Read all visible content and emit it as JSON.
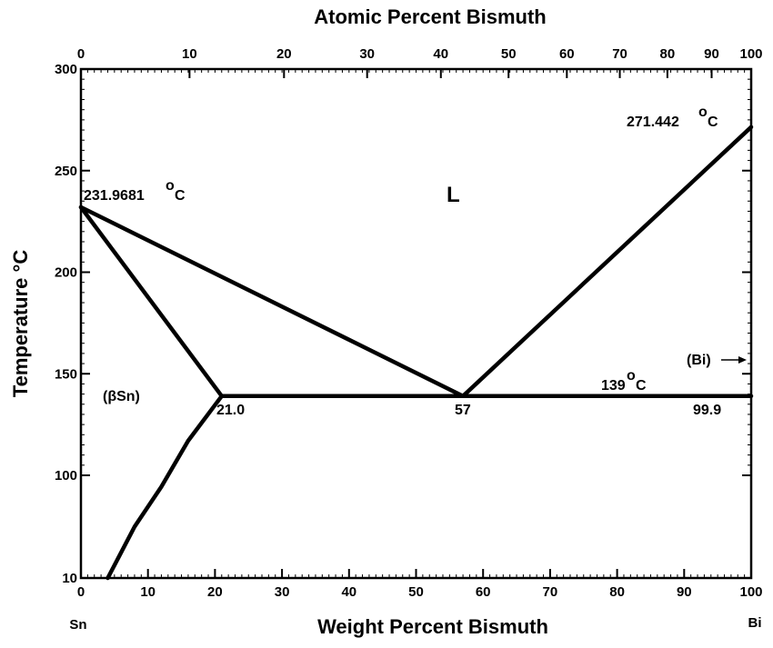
{
  "chart_data": {
    "type": "line",
    "title": "",
    "x_bottom_label": "Weight Percent Bismuth",
    "x_top_label": "Atomic Percent Bismuth",
    "ylabel": "Temperature °C",
    "xlim": [
      0,
      100
    ],
    "ylim": [
      10,
      300
    ],
    "bottom_ticks": [
      "0",
      "10",
      "20",
      "30",
      "40",
      "50",
      "60",
      "70",
      "80",
      "90",
      "100"
    ],
    "top_ticks": [
      {
        "label": "0",
        "wt": 0
      },
      {
        "label": "10",
        "wt": 16.2
      },
      {
        "label": "20",
        "wt": 30.3
      },
      {
        "label": "30",
        "wt": 42.7
      },
      {
        "label": "40",
        "wt": 53.7
      },
      {
        "label": "50",
        "wt": 63.8
      },
      {
        "label": "60",
        "wt": 72.5
      },
      {
        "label": "70",
        "wt": 80.4
      },
      {
        "label": "80",
        "wt": 87.5
      },
      {
        "label": "90",
        "wt": 94.1
      },
      {
        "label": "100",
        "wt": 100
      }
    ],
    "y_ticks": [
      {
        "label": "300",
        "value": 300
      },
      {
        "label": "250",
        "value": 250
      },
      {
        "label": "200",
        "value": 200
      },
      {
        "label": "150",
        "value": 150
      },
      {
        "label": "100",
        "value": 100
      },
      {
        "label": "10",
        "value": 10
      }
    ],
    "end_labels": {
      "left": "Sn",
      "right": "Bi"
    },
    "series": [
      {
        "points": [
          [
            0,
            231.97
          ],
          [
            21.0,
            139
          ]
        ]
      },
      {
        "points": [
          [
            0,
            231.97
          ],
          [
            57,
            139
          ]
        ]
      },
      {
        "points": [
          [
            57,
            139
          ],
          [
            100,
            271.44
          ]
        ]
      },
      {
        "points": [
          [
            21.0,
            139
          ],
          [
            100,
            139
          ]
        ]
      },
      {
        "points": [
          [
            4,
            10
          ],
          [
            8,
            55
          ],
          [
            12,
            90
          ],
          [
            16,
            117
          ],
          [
            21.0,
            139
          ]
        ]
      }
    ],
    "annotations": {
      "sn_melting": "231.9681",
      "bi_melting": "271.442",
      "degree_symbol": "o",
      "c_unit": "C",
      "eutectic_temp": "139",
      "sn_solubility": "21.0",
      "eutectic_comp": "57",
      "bi_solubility": "99.9",
      "liquid_region": "L",
      "beta_sn_region": "(βSn)",
      "bi_phase": "(Bi)"
    }
  }
}
